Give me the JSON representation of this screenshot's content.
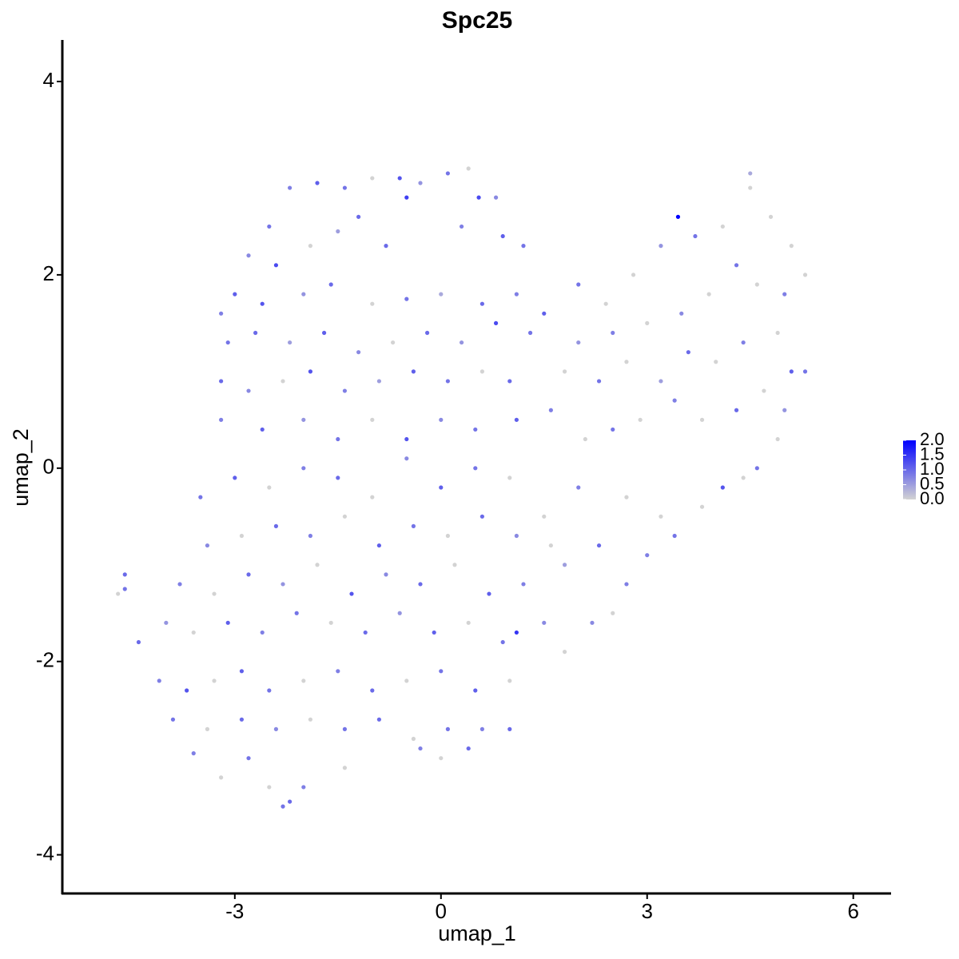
{
  "chart_data": {
    "type": "scatter",
    "title": "Spc25",
    "x_label": "umap_1",
    "y_label": "umap_2",
    "xlim": [
      -5.51,
      6.55
    ],
    "ylim": [
      -4.4,
      4.43
    ],
    "xticks": [
      -3,
      0,
      3,
      6
    ],
    "yticks": [
      -4,
      -2,
      0,
      2,
      4
    ],
    "color_low": "#d3d3d3",
    "color_high": "#0000ff",
    "clim": [
      0,
      2.0
    ],
    "cticks": [
      {
        "value": 0,
        "label": "0.0"
      },
      {
        "value": 0.5,
        "label": "0.5"
      },
      {
        "value": 1,
        "label": "1.0"
      },
      {
        "value": 1.5,
        "label": "1.5"
      },
      {
        "value": 2,
        "label": "2.0"
      }
    ],
    "x": [
      -2.2,
      -1.8,
      -1.4,
      -1.0,
      -0.6,
      -0.3,
      0.1,
      0.4,
      0.8,
      0.55,
      -0.5,
      -1.2,
      -2.5,
      -2.8,
      -2.4,
      -1.9,
      -1.5,
      -0.8,
      0.3,
      0.9,
      1.2,
      -3.0,
      -3.2,
      -2.6,
      -2.0,
      -1.6,
      -1.0,
      -0.5,
      0.0,
      0.6,
      1.1,
      -3.1,
      -2.7,
      -2.2,
      -1.7,
      -1.2,
      -0.7,
      -0.2,
      0.3,
      0.8,
      1.3,
      -3.2,
      -2.8,
      -2.3,
      -1.9,
      -1.4,
      -0.9,
      -0.4,
      0.1,
      0.6,
      1.0,
      -3.2,
      -2.6,
      -2.0,
      -1.5,
      -1.0,
      -0.5,
      0.0,
      0.5,
      1.1,
      1.6,
      1.5,
      2.0,
      2.4,
      2.8,
      3.2,
      3.45,
      3.7,
      4.1,
      4.5,
      4.5,
      4.8,
      5.1,
      5.3,
      5.0,
      4.6,
      4.3,
      3.9,
      3.5,
      3.0,
      2.5,
      2.0,
      1.8,
      2.3,
      2.7,
      3.2,
      3.6,
      4.0,
      4.4,
      4.9,
      5.1,
      5.3,
      4.7,
      4.3,
      3.8,
      3.4,
      2.9,
      2.5,
      2.1,
      4.9,
      5.0,
      4.6,
      4.1,
      4.4,
      3.8,
      3.4,
      3.0,
      3.2,
      2.7,
      2.5,
      2.2,
      2.7,
      2.3,
      1.8,
      1.5,
      2.0,
      -3.5,
      -3.0,
      -2.5,
      -2.0,
      -1.5,
      -1.0,
      -0.5,
      0.0,
      0.5,
      1.0,
      -3.4,
      -2.9,
      -2.4,
      -1.9,
      -1.4,
      -0.9,
      -0.4,
      0.1,
      0.6,
      1.1,
      1.6,
      -3.8,
      -3.3,
      -2.8,
      -2.3,
      -1.8,
      -1.3,
      -0.8,
      -0.3,
      0.2,
      0.7,
      1.2,
      1.1,
      -4.7,
      -4.6,
      -4.6,
      -4.4,
      -4.0,
      -3.6,
      -3.1,
      -2.6,
      -2.1,
      -1.6,
      -1.1,
      -0.6,
      -0.1,
      0.4,
      0.9,
      1.5,
      1.8,
      -4.1,
      -3.7,
      -3.3,
      -2.9,
      -2.5,
      -2.0,
      -1.5,
      -1.0,
      -0.5,
      0.0,
      0.5,
      1.0,
      -3.9,
      -3.4,
      -2.9,
      -2.4,
      -1.9,
      -1.4,
      -0.9,
      -0.4,
      0.1,
      0.6,
      1.0,
      -3.6,
      -3.2,
      -2.8,
      -2.5,
      -2.3,
      -2.2,
      -2.0,
      -1.4,
      -0.3,
      0.0,
      0.4
    ],
    "y": [
      2.9,
      2.95,
      2.9,
      3.0,
      3.0,
      2.95,
      3.05,
      3.1,
      2.8,
      2.8,
      2.8,
      2.6,
      2.5,
      2.2,
      2.1,
      2.3,
      2.45,
      2.3,
      2.5,
      2.4,
      2.3,
      1.8,
      1.6,
      1.7,
      1.8,
      1.9,
      1.7,
      1.75,
      1.8,
      1.7,
      1.8,
      1.3,
      1.4,
      1.3,
      1.4,
      1.2,
      1.3,
      1.4,
      1.3,
      1.5,
      1.4,
      0.9,
      0.8,
      0.9,
      1.0,
      0.8,
      0.9,
      1.0,
      0.9,
      1.0,
      0.9,
      0.5,
      0.4,
      0.5,
      0.3,
      0.5,
      0.3,
      0.5,
      0.4,
      0.5,
      0.6,
      1.6,
      1.9,
      1.7,
      2.0,
      2.3,
      2.6,
      2.4,
      2.5,
      2.9,
      3.05,
      2.6,
      2.3,
      2.0,
      1.8,
      1.9,
      2.1,
      1.8,
      1.6,
      1.5,
      1.4,
      1.3,
      1.0,
      0.9,
      1.1,
      0.9,
      1.2,
      1.1,
      1.3,
      1.4,
      1.0,
      1.0,
      0.8,
      0.6,
      0.5,
      0.7,
      0.5,
      0.4,
      0.3,
      0.3,
      0.6,
      0.0,
      -0.2,
      -0.1,
      -0.4,
      -0.7,
      -0.9,
      -0.5,
      -1.2,
      -1.5,
      -1.6,
      -0.3,
      -0.8,
      -1.0,
      -0.5,
      -0.2,
      -0.3,
      -0.1,
      -0.2,
      0.0,
      -0.1,
      -0.3,
      0.1,
      -0.2,
      0.0,
      -0.1,
      -0.8,
      -0.7,
      -0.6,
      -0.7,
      -0.5,
      -0.8,
      -0.6,
      -0.7,
      -0.5,
      -0.7,
      -0.8,
      -1.2,
      -1.3,
      -1.1,
      -1.2,
      -1.0,
      -1.3,
      -1.1,
      -1.2,
      -1.0,
      -1.3,
      -1.2,
      -1.7,
      -1.3,
      -1.1,
      -1.25,
      -1.8,
      -1.6,
      -1.7,
      -1.6,
      -1.7,
      -1.5,
      -1.6,
      -1.7,
      -1.5,
      -1.7,
      -1.6,
      -1.8,
      -1.6,
      -1.9,
      -2.2,
      -2.3,
      -2.2,
      -2.1,
      -2.3,
      -2.2,
      -2.1,
      -2.3,
      -2.2,
      -2.1,
      -2.3,
      -2.2,
      -2.6,
      -2.7,
      -2.6,
      -2.7,
      -2.6,
      -2.7,
      -2.6,
      -2.8,
      -2.7,
      -2.7,
      -2.7,
      -2.95,
      -3.2,
      -3.0,
      -3.3,
      -3.5,
      -3.45,
      -3.3,
      -3.1,
      -2.9,
      -3.0,
      -2.9
    ],
    "values": [
      0.8,
      1.1,
      0.9,
      0,
      1.2,
      0.6,
      0.9,
      0,
      0.7,
      1.3,
      1.4,
      1.0,
      0.9,
      0.7,
      1.3,
      0,
      0.5,
      1.0,
      0.8,
      1.1,
      0.9,
      1.1,
      0.8,
      1.2,
      0.6,
      1.0,
      0,
      0.9,
      0.4,
      1.0,
      0.8,
      0.9,
      1.0,
      0.5,
      1.1,
      0.7,
      0,
      1.0,
      0.6,
      1.3,
      0.9,
      1.0,
      0.7,
      0,
      1.2,
      0.8,
      0.5,
      1.1,
      0.9,
      0,
      1.0,
      0.8,
      1.1,
      0.6,
      0.9,
      0,
      1.2,
      0.7,
      0.9,
      1.1,
      0.8,
      1.1,
      0.9,
      0,
      0,
      0.6,
      2.0,
      0.9,
      0,
      0,
      0.4,
      0,
      0,
      0,
      0.8,
      0,
      0.9,
      0,
      0.7,
      0,
      0.8,
      0.6,
      0,
      0.9,
      0,
      0.5,
      1.0,
      0,
      0.8,
      0,
      1.1,
      0.9,
      0,
      1.0,
      0,
      0.8,
      0,
      0.9,
      0,
      0,
      0.6,
      0.9,
      1.2,
      0,
      0,
      0.9,
      0.8,
      0,
      0.8,
      0,
      0.7,
      0,
      1.0,
      0.5,
      0,
      0.8,
      0.9,
      1.1,
      0,
      0.8,
      1.0,
      0,
      0.7,
      1.1,
      0.9,
      0,
      0.7,
      0,
      1.0,
      0.8,
      0,
      1.1,
      0.9,
      0,
      1.0,
      0.7,
      0,
      0.8,
      0,
      1.0,
      0.6,
      0,
      1.2,
      0.7,
      1.0,
      0,
      1.1,
      0.8,
      1.5,
      0,
      1.0,
      0.9,
      1.0,
      0.6,
      0,
      1.1,
      0.8,
      0.9,
      0,
      1.0,
      0.6,
      1.1,
      0,
      0.9,
      0.7,
      0,
      0.8,
      1.2,
      0,
      1.1,
      0.9,
      0,
      0.8,
      1.0,
      0,
      0.9,
      1.1,
      0,
      0.9,
      0,
      1.0,
      0.7,
      0,
      0.9,
      1.0,
      0,
      0.9,
      0.8,
      1.0,
      0.8,
      0,
      0.9,
      0,
      0.9,
      1.0,
      0.8,
      0,
      0.8,
      0,
      1.0
    ]
  }
}
